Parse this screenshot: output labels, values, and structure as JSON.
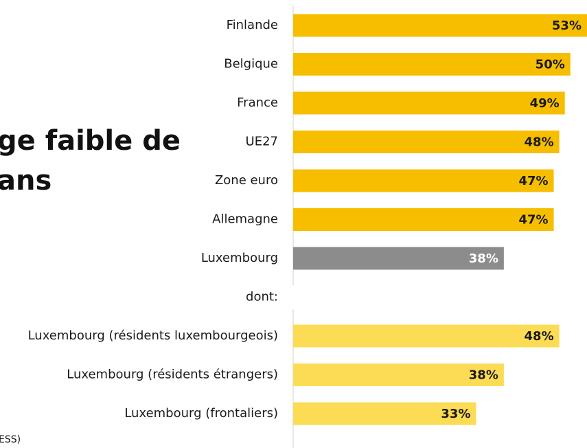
{
  "chart_data": {
    "type": "bar",
    "orientation": "horizontal",
    "title_lines": [
      "ge faible de",
      "ans"
    ],
    "footnote": "ESS)",
    "categories": [
      "Finlande",
      "Belgique",
      "France",
      "UE27",
      "Zone euro",
      "Allemagne",
      "Luxembourg",
      "dont:",
      "Luxembourg (résidents luxembourgeois)",
      "Luxembourg (résidents étrangers)",
      "Luxembourg (frontaliers)"
    ],
    "values": [
      53,
      50,
      49,
      48,
      47,
      47,
      38,
      null,
      48,
      38,
      33
    ],
    "value_labels": [
      "53%",
      "50%",
      "49%",
      "48%",
      "47%",
      "47%",
      "38%",
      null,
      "48%",
      "38%",
      "33%"
    ],
    "colors": [
      "#f7be00",
      "#f7be00",
      "#f7be00",
      "#f7be00",
      "#f7be00",
      "#f7be00",
      "#8c8c8c",
      null,
      "#fddc55",
      "#fddc55",
      "#fddc55"
    ],
    "label_colors": [
      "#1a1a1a",
      "#1a1a1a",
      "#1a1a1a",
      "#1a1a1a",
      "#1a1a1a",
      "#1a1a1a",
      "#ffffff",
      null,
      "#1a1a1a",
      "#1a1a1a",
      "#1a1a1a"
    ],
    "xlim": [
      0,
      53
    ]
  }
}
